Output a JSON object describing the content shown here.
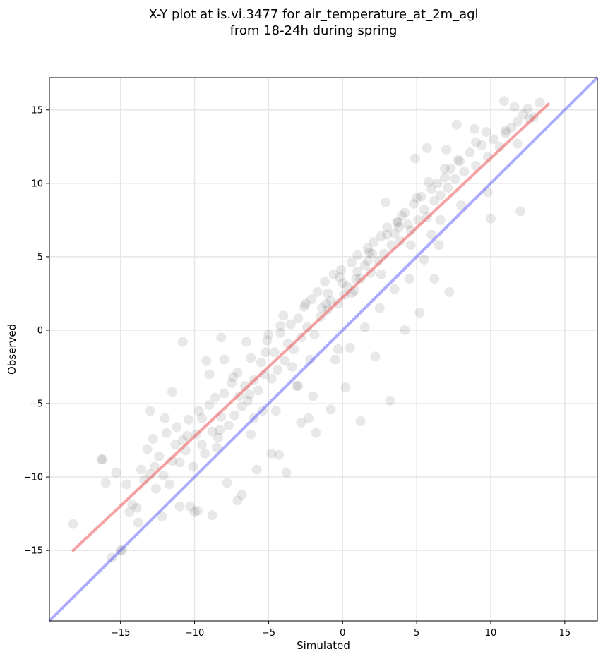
{
  "chart_data": {
    "type": "scatter",
    "title_line1": "X-Y plot at is.vi.3477 for air_temperature_at_2m_agl",
    "title_line2": "from 18-24h during spring",
    "xlabel": "Simulated",
    "ylabel": "Observed",
    "xlim": [
      -19.8,
      17.2
    ],
    "ylim": [
      -19.8,
      17.2
    ],
    "xticks": [
      -15,
      -10,
      -5,
      0,
      5,
      10,
      15
    ],
    "yticks": [
      -15,
      -10,
      -5,
      0,
      5,
      10,
      15
    ],
    "xtick_labels": [
      "−15",
      "−10",
      "−5",
      "0",
      "5",
      "10",
      "15"
    ],
    "ytick_labels": [
      "−15",
      "−10",
      "−5",
      "0",
      "5",
      "10",
      "15"
    ],
    "grid": true,
    "point_color": "#000000",
    "point_alpha": 0.09,
    "fit_line": {
      "color": "#ee5555",
      "x": [
        -18.2,
        13.9
      ],
      "y": [
        -15.0,
        15.4
      ]
    },
    "identity_line": {
      "color": "#4444ff",
      "x": [
        -19.8,
        17.2
      ],
      "y": [
        -19.8,
        17.2
      ]
    },
    "points_x": [
      -18.2,
      -16.3,
      -16.0,
      -15.6,
      -15.3,
      -14.9,
      -14.6,
      -14.2,
      -13.9,
      -13.6,
      -13.4,
      -13.2,
      -13.0,
      -12.8,
      -12.6,
      -12.4,
      -12.1,
      -11.9,
      -11.7,
      -11.5,
      -11.2,
      -11.0,
      -10.8,
      -10.6,
      -10.4,
      -10.1,
      -9.9,
      -9.7,
      -9.5,
      -9.3,
      -9.0,
      -8.8,
      -8.6,
      -8.4,
      -8.2,
      -8.0,
      -7.7,
      -7.5,
      -7.3,
      -7.1,
      -6.8,
      -6.6,
      -6.4,
      -6.2,
      -6.0,
      -5.7,
      -5.5,
      -5.3,
      -5.1,
      -4.8,
      -4.6,
      -4.4,
      -4.2,
      -3.9,
      -3.7,
      -3.5,
      -3.3,
      -3.0,
      -2.8,
      -2.6,
      -2.4,
      -2.1,
      -1.9,
      -1.7,
      -1.5,
      -1.2,
      -1.0,
      -0.8,
      -0.6,
      -0.3,
      -0.1,
      0.1,
      0.3,
      0.6,
      0.8,
      1.0,
      1.2,
      1.5,
      1.7,
      1.9,
      2.1,
      2.4,
      2.6,
      2.8,
      3.0,
      3.3,
      3.5,
      3.7,
      3.9,
      4.2,
      4.4,
      4.6,
      4.8,
      5.1,
      5.3,
      5.5,
      5.7,
      6.0,
      6.2,
      6.4,
      6.6,
      6.9,
      7.1,
      7.3,
      7.6,
      7.9,
      8.2,
      8.6,
      9.0,
      9.4,
      9.8,
      10.2,
      10.6,
      11.0,
      11.4,
      11.8,
      12.2,
      12.5,
      12.9,
      13.3,
      -13.0,
      -12.0,
      -11.5,
      -10.5,
      -9.5,
      -9.0,
      -8.5,
      -8.0,
      -7.0,
      -6.5,
      -6.0,
      -5.0,
      -4.5,
      -4.0,
      -3.0,
      -2.5,
      -2.0,
      -1.0,
      -0.5,
      0.0,
      0.5,
      1.0,
      1.5,
      2.0,
      2.5,
      3.0,
      3.5,
      4.0,
      4.5,
      5.0,
      5.5,
      6.0,
      6.5,
      7.0,
      8.0,
      9.0,
      10.0,
      11.0,
      12.0,
      -11.0,
      -10.0,
      -8.8,
      -7.8,
      -6.8,
      -5.8,
      -4.8,
      -3.8,
      -2.8,
      -1.8,
      -0.8,
      0.2,
      1.2,
      2.2,
      3.2,
      4.2,
      5.2,
      6.2,
      7.2,
      -12.2,
      -9.8,
      -7.4,
      -5.4,
      -3.4,
      -1.4,
      0.6,
      2.6,
      4.6,
      6.6,
      -14.4,
      -10.8,
      -8.2,
      -6.2,
      -4.2,
      -2.2,
      -0.2,
      1.8,
      3.8,
      5.8,
      7.8,
      9.8,
      11.8,
      -16.2,
      -13.8,
      -11.3,
      -9.2,
      -7.1,
      -5.2,
      -3.1,
      -1.1,
      0.9,
      2.9,
      4.9,
      6.9,
      8.9,
      10.9,
      12.6,
      -15.0,
      -12.7,
      -10.3,
      -8.3,
      -6.3,
      -4.3,
      -2.3,
      -0.3,
      1.7,
      3.7,
      5.7,
      7.7,
      9.7,
      11.6
    ],
    "points_y": [
      -13.2,
      -8.8,
      -10.4,
      -15.5,
      -9.7,
      -15.0,
      -10.5,
      -11.9,
      -12.1,
      -9.5,
      -10.2,
      -8.1,
      -9.8,
      -7.4,
      -10.8,
      -8.6,
      -9.9,
      -7.0,
      -10.5,
      -8.9,
      -6.6,
      -9.0,
      -7.5,
      -8.2,
      -6.1,
      -9.3,
      -7.1,
      -5.5,
      -7.8,
      -8.4,
      -5.1,
      -6.9,
      -4.6,
      -7.3,
      -5.9,
      -4.3,
      -6.5,
      -3.6,
      -5.8,
      -2.9,
      -5.2,
      -3.8,
      -4.8,
      -1.9,
      -3.4,
      -4.1,
      -2.2,
      -3.0,
      -0.7,
      -3.3,
      -1.5,
      -2.7,
      -0.2,
      -2.1,
      -0.9,
      0.4,
      -1.3,
      0.8,
      -0.5,
      1.6,
      0.2,
      2.1,
      -0.3,
      2.6,
      0.9,
      3.3,
      1.4,
      2.0,
      3.8,
      1.8,
      4.1,
      2.4,
      3.0,
      4.6,
      2.7,
      5.1,
      3.5,
      4.4,
      5.6,
      3.9,
      6.0,
      4.7,
      6.4,
      5.2,
      7.0,
      5.8,
      6.6,
      7.3,
      6.1,
      8.0,
      7.2,
      6.8,
      8.6,
      7.5,
      9.1,
      8.2,
      7.7,
      9.6,
      8.8,
      10.0,
      9.2,
      10.4,
      9.7,
      11.0,
      10.3,
      11.5,
      10.8,
      12.1,
      11.2,
      12.6,
      11.8,
      13.0,
      12.5,
      13.4,
      13.8,
      14.2,
      14.7,
      15.1,
      14.5,
      15.5,
      -5.5,
      -6.0,
      -4.2,
      -7.2,
      -6.0,
      -3.0,
      -8.0,
      -2.0,
      -4.5,
      -0.8,
      -6.0,
      -0.3,
      -5.5,
      1.0,
      -3.8,
      1.8,
      -4.5,
      2.5,
      -2.0,
      3.2,
      -1.2,
      4.0,
      0.2,
      5.2,
      1.5,
      6.5,
      2.8,
      7.8,
      3.5,
      9.0,
      4.8,
      6.5,
      5.8,
      12.3,
      8.5,
      12.8,
      7.6,
      13.6,
      8.1,
      -12.0,
      -12.4,
      -12.6,
      -10.4,
      -11.2,
      -9.5,
      -8.4,
      -9.7,
      -6.3,
      -7.0,
      -5.4,
      -3.9,
      -6.2,
      -1.8,
      -4.8,
      0.0,
      1.2,
      3.5,
      2.6,
      -12.7,
      -12.3,
      -3.2,
      -5.5,
      -2.5,
      1.5,
      2.5,
      3.8,
      5.8,
      7.5,
      -12.4,
      -0.8,
      -0.5,
      -7.1,
      0.3,
      -2.0,
      3.6,
      5.3,
      7.0,
      10.1,
      11.6,
      9.4,
      12.7,
      -8.8,
      -13.1,
      -7.8,
      -2.1,
      -11.6,
      -1.5,
      -3.8,
      1.8,
      3.5,
      8.7,
      11.7,
      11.0,
      13.7,
      15.6,
      14.4,
      -15.0,
      -9.3,
      -12.0,
      -6.8,
      -4.4,
      -8.5,
      -6.0,
      -1.3,
      4.7,
      7.4,
      12.4,
      14.0,
      13.5,
      15.2
    ]
  }
}
